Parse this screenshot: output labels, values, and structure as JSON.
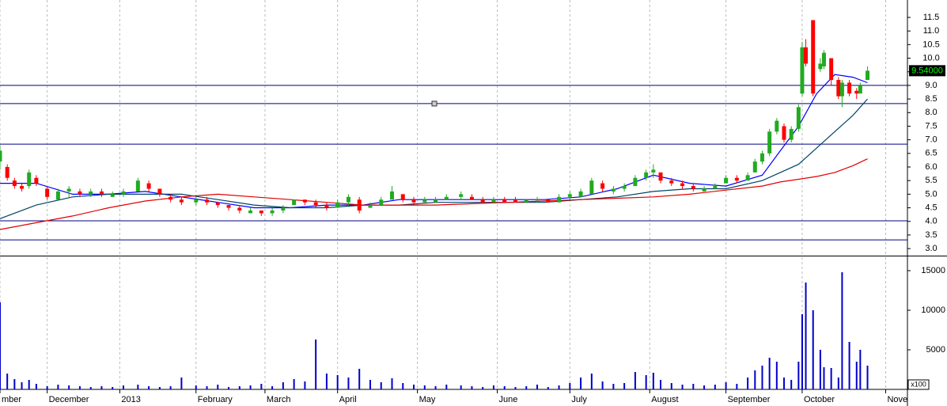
{
  "chart_data": [
    {
      "type": "candlestick",
      "x": [
        0,
        2,
        4,
        6,
        8,
        10,
        13,
        16,
        19,
        22,
        25,
        28,
        31,
        34,
        38,
        41,
        44,
        47,
        50,
        54,
        57,
        60,
        63,
        66,
        69,
        72,
        75,
        78,
        81,
        84,
        87,
        90,
        93,
        96,
        99,
        102,
        105,
        108,
        111,
        114,
        117,
        120,
        123,
        127,
        130,
        133,
        136,
        139,
        142,
        145,
        148,
        151,
        154,
        157,
        160,
        163,
        166,
        169,
        172,
        175,
        178,
        180,
        182,
        185,
        188,
        191,
        194,
        197,
        200,
        203,
        206,
        208,
        210,
        212,
        214,
        216,
        218,
        220,
        221,
        222,
        224,
        226,
        227,
        229,
        231,
        232,
        234,
        236,
        237,
        239
      ],
      "open": [
        6.2,
        6.0,
        5.5,
        5.3,
        5.3,
        5.6,
        5.2,
        4.8,
        5.1,
        5.1,
        5.0,
        5.1,
        4.9,
        5.0,
        5.1,
        5.4,
        5.2,
        4.9,
        4.8,
        4.7,
        4.8,
        4.7,
        4.6,
        4.5,
        4.3,
        4.4,
        4.3,
        4.4,
        4.6,
        4.8,
        4.7,
        4.6,
        4.5,
        4.7,
        4.8,
        4.5,
        4.6,
        4.8,
        5.0,
        4.8,
        4.7,
        4.7,
        4.8,
        4.9,
        4.9,
        4.8,
        4.7,
        4.8,
        4.8,
        4.7,
        4.8,
        4.8,
        4.7,
        4.9,
        4.9,
        5.0,
        5.4,
        5.1,
        5.2,
        5.3,
        5.6,
        5.8,
        5.8,
        5.5,
        5.4,
        5.3,
        5.1,
        5.2,
        5.4,
        5.6,
        5.5,
        5.8,
        6.2,
        6.5,
        7.3,
        7.5,
        7.0,
        7.4,
        8.7,
        10.4,
        11.4,
        9.6,
        9.7,
        10.0,
        9.2,
        8.6,
        9.1,
        8.8,
        8.7,
        9.2
      ],
      "high": [
        6.8,
        6.1,
        5.6,
        5.4,
        5.9,
        5.7,
        5.3,
        5.2,
        5.3,
        5.2,
        5.2,
        5.2,
        5.1,
        5.2,
        5.6,
        5.5,
        5.2,
        5.0,
        4.9,
        4.9,
        4.9,
        4.7,
        4.6,
        4.6,
        4.5,
        4.4,
        4.5,
        4.6,
        4.8,
        4.8,
        4.8,
        4.7,
        4.8,
        5.0,
        4.9,
        4.7,
        4.9,
        5.3,
        5.0,
        4.9,
        4.9,
        4.9,
        5.0,
        5.1,
        5.0,
        4.9,
        4.9,
        4.9,
        4.9,
        4.8,
        4.9,
        4.8,
        5.0,
        5.1,
        5.2,
        5.6,
        5.5,
        5.3,
        5.4,
        5.7,
        5.9,
        6.1,
        5.8,
        5.6,
        5.5,
        5.4,
        5.3,
        5.4,
        5.7,
        5.7,
        5.8,
        6.3,
        6.6,
        7.4,
        7.8,
        7.6,
        7.5,
        8.3,
        10.6,
        10.7,
        11.4,
        10.0,
        10.3,
        10.0,
        9.3,
        9.2,
        9.2,
        8.9,
        9.1,
        9.7
      ],
      "low": [
        5.9,
        5.5,
        5.2,
        5.1,
        5.2,
        5.3,
        4.8,
        4.8,
        4.9,
        4.9,
        4.9,
        4.9,
        4.9,
        4.9,
        5.1,
        5.1,
        4.9,
        4.7,
        4.6,
        4.6,
        4.6,
        4.5,
        4.4,
        4.3,
        4.3,
        4.2,
        4.2,
        4.3,
        4.6,
        4.6,
        4.5,
        4.4,
        4.5,
        4.6,
        4.3,
        4.5,
        4.6,
        4.8,
        4.7,
        4.6,
        4.7,
        4.7,
        4.8,
        4.8,
        4.8,
        4.7,
        4.7,
        4.7,
        4.7,
        4.7,
        4.7,
        4.7,
        4.7,
        4.8,
        4.9,
        5.0,
        5.1,
        5.0,
        5.1,
        5.3,
        5.5,
        5.6,
        5.4,
        5.3,
        5.2,
        5.1,
        5.1,
        5.2,
        5.4,
        5.4,
        5.5,
        5.8,
        6.1,
        6.4,
        7.2,
        6.9,
        6.9,
        7.3,
        8.6,
        9.7,
        8.6,
        9.5,
        9.6,
        9.0,
        8.5,
        8.2,
        8.6,
        8.5,
        8.7,
        9.2
      ],
      "close": [
        6.6,
        5.6,
        5.3,
        5.2,
        5.8,
        5.4,
        4.9,
        5.1,
        5.2,
        5.0,
        5.1,
        5.0,
        5.0,
        5.1,
        5.5,
        5.2,
        5.0,
        4.8,
        4.7,
        4.8,
        4.7,
        4.6,
        4.5,
        4.4,
        4.4,
        4.3,
        4.4,
        4.5,
        4.8,
        4.7,
        4.6,
        4.5,
        4.7,
        4.9,
        4.4,
        4.6,
        4.8,
        5.1,
        4.8,
        4.7,
        4.8,
        4.8,
        4.9,
        5.0,
        4.8,
        4.7,
        4.8,
        4.7,
        4.7,
        4.8,
        4.8,
        4.7,
        4.9,
        5.0,
        5.1,
        5.5,
        5.2,
        5.2,
        5.3,
        5.6,
        5.8,
        5.9,
        5.5,
        5.4,
        5.3,
        5.2,
        5.2,
        5.3,
        5.6,
        5.5,
        5.7,
        6.2,
        6.5,
        7.3,
        7.7,
        7.0,
        7.4,
        8.2,
        10.4,
        9.8,
        8.7,
        9.8,
        10.2,
        9.2,
        8.6,
        9.1,
        8.7,
        8.7,
        9.0,
        9.54
      ],
      "up_color": "#22aa22",
      "down_color": "#ff0000",
      "lines_x": [
        0,
        10,
        20,
        30,
        40,
        50,
        60,
        70,
        80,
        90,
        100,
        110,
        120,
        130,
        140,
        150,
        160,
        170,
        180,
        190,
        200,
        210,
        215,
        220,
        225,
        230,
        235,
        239
      ],
      "lines": [
        {
          "color": "#0000ff",
          "values": [
            5.4,
            5.4,
            5.0,
            5.0,
            5.1,
            4.9,
            4.7,
            4.5,
            4.5,
            4.6,
            4.6,
            4.8,
            4.8,
            4.8,
            4.8,
            4.8,
            4.9,
            5.2,
            5.7,
            5.4,
            5.3,
            5.7,
            6.6,
            7.5,
            8.7,
            9.4,
            9.3,
            9.1
          ]
        },
        {
          "color": "#004466",
          "values": [
            4.1,
            4.6,
            4.9,
            5.0,
            5.0,
            5.0,
            4.8,
            4.6,
            4.5,
            4.5,
            4.6,
            4.6,
            4.7,
            4.7,
            4.7,
            4.7,
            4.8,
            4.9,
            5.1,
            5.2,
            5.2,
            5.5,
            5.8,
            6.1,
            6.7,
            7.3,
            7.9,
            8.5
          ]
        },
        {
          "color": "#e00000",
          "values": [
            3.7,
            3.95,
            4.2,
            4.5,
            4.75,
            4.9,
            5.0,
            4.9,
            4.8,
            4.7,
            4.6,
            4.6,
            4.6,
            4.65,
            4.7,
            4.75,
            4.8,
            4.85,
            4.9,
            5.0,
            5.15,
            5.3,
            5.45,
            5.55,
            5.65,
            5.8,
            6.05,
            6.3
          ]
        }
      ],
      "hlines": [
        9.0,
        8.33,
        6.84,
        4.02,
        3.32
      ],
      "hline_color": "#000080",
      "last_price": {
        "value": 9.54,
        "label": "9.54000"
      },
      "xlim": [
        0,
        250
      ],
      "ylim": [
        2.77,
        12.14
      ],
      "yticks": [
        {
          "value": 3,
          "label": "3.0"
        },
        3.5,
        {
          "value": 4,
          "label": "4.0"
        },
        4.5,
        {
          "value": 5,
          "label": "5.0"
        },
        5.5,
        {
          "value": 6,
          "label": "6.0"
        },
        6.5,
        {
          "value": 7,
          "label": "7.0"
        },
        7.5,
        {
          "value": 8,
          "label": "8.0"
        },
        8.5,
        {
          "value": 9,
          "label": "9.0"
        },
        9.5,
        {
          "value": 10,
          "label": "10.0"
        },
        10.5,
        {
          "value": 11,
          "label": "11.0"
        },
        11.5
      ]
    },
    {
      "type": "bar",
      "values": [
        11000,
        2000,
        1300,
        900,
        1200,
        700,
        400,
        600,
        500,
        400,
        300,
        400,
        300,
        500,
        600,
        400,
        300,
        400,
        1500,
        500,
        400,
        600,
        300,
        400,
        500,
        700,
        400,
        900,
        1300,
        1000,
        6300,
        2000,
        1800,
        1500,
        2600,
        1200,
        900,
        1400,
        800,
        600,
        500,
        400,
        600,
        500,
        400,
        300,
        500,
        400,
        300,
        400,
        600,
        300,
        500,
        800,
        1500,
        2000,
        1000,
        700,
        800,
        2200,
        1800,
        2100,
        1200,
        800,
        600,
        700,
        500,
        600,
        900,
        700,
        1500,
        2400,
        3000,
        4000,
        3500,
        1500,
        1200,
        3500,
        9500,
        13500,
        10000,
        5000,
        2800,
        2700,
        1500,
        14800,
        6000,
        3500,
        5000,
        3000
      ],
      "color": "#0000cc",
      "ylim": [
        0,
        16700
      ],
      "yticks": [
        5000,
        10000,
        15000
      ],
      "unit_label": "x100",
      "xlim": [
        0,
        250
      ],
      "xticks": [
        {
          "value": 0,
          "label": "mber"
        },
        {
          "value": 13,
          "label": "December"
        },
        {
          "value": 33,
          "label": "2013"
        },
        {
          "value": 54,
          "label": "February"
        },
        {
          "value": 73,
          "label": "March"
        },
        {
          "value": 93,
          "label": "April"
        },
        {
          "value": 115,
          "label": "May"
        },
        {
          "value": 137,
          "label": "June"
        },
        {
          "value": 157,
          "label": "July"
        },
        {
          "value": 179,
          "label": "August"
        },
        {
          "value": 200,
          "label": "September"
        },
        {
          "value": 221,
          "label": "October"
        },
        {
          "value": 244,
          "label": "Nove"
        }
      ]
    }
  ]
}
